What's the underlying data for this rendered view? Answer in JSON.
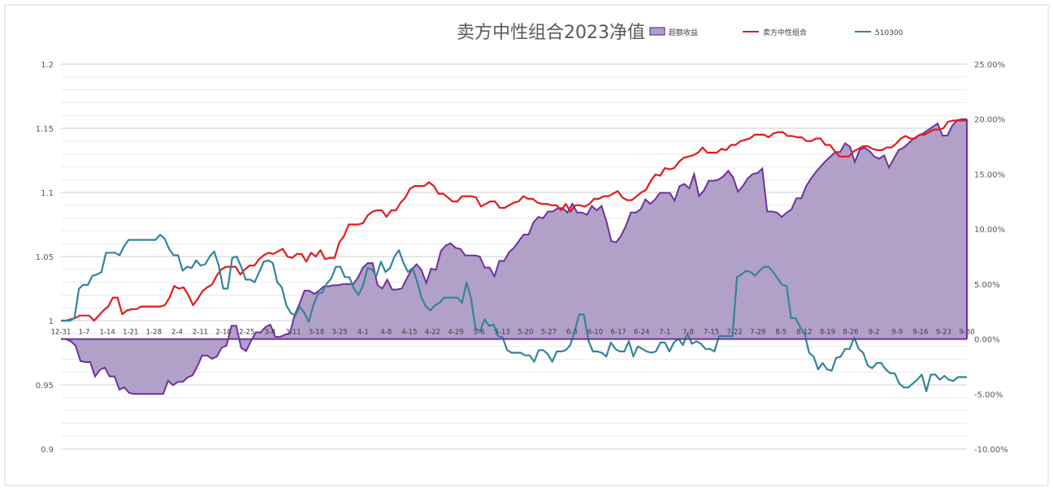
{
  "chart_data": {
    "type": "line",
    "title": "卖方中性组合2023净值",
    "legend_position": "top-right",
    "grid": true,
    "colors": {
      "excess": "#7030a0",
      "excess_fill": "#b1a0c7",
      "portfolio": "#e41a1c",
      "index": "#31859c"
    },
    "y_left": {
      "ylim": [
        0.9,
        1.2
      ],
      "ticks": [
        "1.2",
        "1.15",
        "1.1",
        "1.05",
        "1",
        "0.95",
        "0.9"
      ]
    },
    "y_right": {
      "ylim": [
        -10,
        25
      ],
      "ticks": [
        "25.00%",
        "20.00%",
        "15.00%",
        "10.00%",
        "5.00%",
        "0.00%",
        "-5.00%",
        "-10.00%"
      ]
    },
    "x_ticks": [
      "12-31",
      "1-7",
      "1-14",
      "1-21",
      "1-28",
      "2-4",
      "2-11",
      "2-18",
      "2-25",
      "3-4",
      "3-11",
      "3-18",
      "3-25",
      "4-1",
      "4-8",
      "4-15",
      "4-22",
      "4-29",
      "5-6",
      "5-13",
      "5-20",
      "5-27",
      "6-3",
      "6-10",
      "6-17",
      "6-24",
      "7-1",
      "7-8",
      "7-15",
      "7-22",
      "7-29",
      "8-5",
      "8-12",
      "8-19",
      "8-26",
      "9-2",
      "9-9",
      "9-16",
      "9-23",
      "9-30"
    ],
    "series": [
      {
        "name": "超额收益",
        "axis": "right",
        "kind": "area",
        "values": [
          0,
          0,
          -0.2,
          -0.6,
          -2.0,
          -2.1,
          -2.1,
          -3.4,
          -2.8,
          -2.6,
          -3.4,
          -3.4,
          -4.6,
          -4.4,
          -4.9,
          -5.0,
          -5.0,
          -5.0,
          -5.0,
          -5.0,
          -5.0,
          -5.0,
          -3.8,
          -4.2,
          -3.9,
          -3.9,
          -3.5,
          -3.3,
          -2.5,
          -1.5,
          -1.5,
          -1.8,
          -1.6,
          -0.8,
          -0.6,
          1.2,
          1.2,
          -0.8,
          -1.1,
          -0.2,
          0.6,
          0.6,
          1.1,
          1.3,
          0.2,
          0.2,
          0.4,
          0.5,
          2.2,
          3.2,
          4.4,
          4.4,
          4.1,
          4.4,
          4.8,
          4.8,
          4.9,
          4.9,
          5.0,
          5.0,
          5.0,
          5.6,
          6.5,
          6.9,
          6.9,
          4.9,
          4.6,
          5.4,
          4.5,
          4.5,
          4.6,
          5.5,
          6.3,
          6.8,
          6.3,
          5.1,
          6.4,
          6.3,
          8.0,
          8.5,
          8.7,
          8.3,
          8.2,
          7.6,
          7.6,
          7.6,
          7.5,
          6.5,
          6.5,
          5.7,
          7.1,
          7.1,
          7.9,
          8.3,
          8.9,
          9.5,
          9.5,
          10.6,
          11.1,
          11.0,
          11.6,
          11.6,
          11.9,
          11.9,
          11.5,
          12.3,
          11.5,
          11.5,
          11.3,
          12.1,
          11.7,
          12.1,
          10.7,
          8.9,
          8.8,
          9.4,
          10.3,
          11.5,
          11.5,
          11.8,
          12.7,
          12.3,
          12.7,
          13.3,
          13.3,
          13.3,
          12.6,
          13.9,
          14.1,
          13.7,
          15.0,
          13.0,
          13.5,
          14.4,
          14.4,
          14.5,
          14.8,
          15.3,
          14.7,
          13.4,
          13.9,
          14.6,
          15.0,
          15.1,
          15.5,
          11.6,
          11.6,
          11.5,
          11.1,
          11.5,
          11.8,
          12.8,
          12.8,
          13.9,
          14.6,
          15.2,
          15.7,
          16.2,
          16.6,
          17.0,
          17.0,
          17.8,
          17.5,
          16.1,
          17.2,
          17.4,
          17.1,
          16.6,
          16.4,
          16.7,
          15.6,
          16.4,
          17.2,
          17.4,
          17.8,
          18.2,
          18.5,
          18.7,
          19.0,
          19.3,
          19.6,
          18.5,
          18.5,
          19.4,
          19.9,
          20.0,
          20.0
        ]
      },
      {
        "name": "卖方中性组合",
        "axis": "left",
        "kind": "line",
        "values": [
          1.0,
          1.0,
          1.001,
          1.002,
          1.004,
          1.004,
          1.004,
          1.0,
          1.004,
          1.008,
          1.011,
          1.018,
          1.018,
          1.005,
          1.008,
          1.009,
          1.009,
          1.011,
          1.011,
          1.011,
          1.011,
          1.011,
          1.012,
          1.018,
          1.027,
          1.025,
          1.026,
          1.02,
          1.012,
          1.017,
          1.023,
          1.026,
          1.028,
          1.035,
          1.04,
          1.042,
          1.042,
          1.042,
          1.036,
          1.04,
          1.043,
          1.043,
          1.048,
          1.051,
          1.053,
          1.052,
          1.054,
          1.056,
          1.05,
          1.049,
          1.052,
          1.052,
          1.046,
          1.053,
          1.05,
          1.055,
          1.048,
          1.049,
          1.049,
          1.061,
          1.066,
          1.075,
          1.075,
          1.075,
          1.076,
          1.082,
          1.085,
          1.086,
          1.086,
          1.081,
          1.086,
          1.086,
          1.092,
          1.096,
          1.103,
          1.105,
          1.105,
          1.105,
          1.108,
          1.105,
          1.099,
          1.099,
          1.096,
          1.093,
          1.093,
          1.097,
          1.097,
          1.097,
          1.096,
          1.089,
          1.091,
          1.093,
          1.093,
          1.088,
          1.088,
          1.09,
          1.092,
          1.093,
          1.097,
          1.095,
          1.095,
          1.092,
          1.091,
          1.091,
          1.09,
          1.09,
          1.086,
          1.091,
          1.085,
          1.09,
          1.09,
          1.089,
          1.091,
          1.095,
          1.095,
          1.097,
          1.097,
          1.099,
          1.101,
          1.096,
          1.094,
          1.094,
          1.097,
          1.1,
          1.102,
          1.109,
          1.114,
          1.113,
          1.119,
          1.118,
          1.119,
          1.124,
          1.127,
          1.128,
          1.129,
          1.131,
          1.135,
          1.131,
          1.131,
          1.131,
          1.134,
          1.133,
          1.137,
          1.137,
          1.14,
          1.141,
          1.142,
          1.145,
          1.145,
          1.145,
          1.143,
          1.146,
          1.147,
          1.147,
          1.144,
          1.144,
          1.143,
          1.143,
          1.14,
          1.14,
          1.142,
          1.142,
          1.137,
          1.137,
          1.132,
          1.128,
          1.128,
          1.128,
          1.132,
          1.134,
          1.136,
          1.136,
          1.134,
          1.133,
          1.133,
          1.135,
          1.135,
          1.138,
          1.142,
          1.144,
          1.142,
          1.142,
          1.145,
          1.145,
          1.147,
          1.149,
          1.149,
          1.15,
          1.155,
          1.156,
          1.156,
          1.156,
          1.156
        ]
      },
      {
        "name": "510300",
        "axis": "left",
        "kind": "line",
        "values": [
          1.0,
          1.0,
          1.0,
          1.002,
          1.025,
          1.028,
          1.028,
          1.035,
          1.036,
          1.038,
          1.053,
          1.053,
          1.053,
          1.051,
          1.058,
          1.063,
          1.063,
          1.063,
          1.063,
          1.063,
          1.063,
          1.063,
          1.067,
          1.064,
          1.056,
          1.051,
          1.051,
          1.039,
          1.042,
          1.041,
          1.047,
          1.043,
          1.044,
          1.05,
          1.054,
          1.043,
          1.025,
          1.025,
          1.049,
          1.05,
          1.042,
          1.032,
          1.032,
          1.03,
          1.038,
          1.046,
          1.047,
          1.045,
          1.03,
          1.026,
          1.012,
          1.006,
          1.004,
          1.011,
          1.006,
          0.999,
          1.012,
          1.021,
          1.022,
          1.029,
          1.033,
          1.042,
          1.042,
          1.034,
          1.034,
          1.025,
          1.02,
          1.027,
          1.041,
          1.04,
          1.035,
          1.046,
          1.038,
          1.041,
          1.05,
          1.055,
          1.045,
          1.038,
          1.041,
          1.031,
          1.018,
          1.011,
          1.008,
          1.012,
          1.014,
          1.018,
          1.018,
          1.018,
          1.018,
          1.014,
          1.03,
          1.017,
          0.994,
          0.992,
          1.001,
          0.996,
          0.997,
          0.988,
          0.987,
          0.977,
          0.975,
          0.975,
          0.975,
          0.973,
          0.973,
          0.968,
          0.977,
          0.977,
          0.974,
          0.968,
          0.976,
          0.976,
          0.977,
          0.981,
          0.992,
          1.005,
          1.005,
          0.985,
          0.976,
          0.976,
          0.975,
          0.972,
          0.983,
          0.978,
          0.976,
          0.976,
          0.984,
          0.972,
          0.98,
          0.978,
          0.976,
          0.975,
          0.976,
          0.983,
          0.983,
          0.976,
          0.983,
          0.986,
          0.981,
          0.99,
          0.982,
          0.984,
          0.982,
          0.978,
          0.978,
          0.976,
          0.988,
          0.988,
          0.988,
          0.988,
          1.034,
          1.036,
          1.039,
          1.038,
          1.035,
          1.039,
          1.042,
          1.042,
          1.038,
          1.033,
          1.028,
          1.027,
          1.002,
          1.002,
          0.995,
          0.99,
          0.975,
          0.972,
          0.962,
          0.967,
          0.962,
          0.961,
          0.971,
          0.972,
          0.978,
          0.978,
          0.987,
          0.978,
          0.975,
          0.965,
          0.963,
          0.967,
          0.967,
          0.962,
          0.959,
          0.959,
          0.951,
          0.948,
          0.948,
          0.951,
          0.954,
          0.958,
          0.945,
          0.958,
          0.958,
          0.954,
          0.957,
          0.954,
          0.953,
          0.956,
          0.956,
          0.956
        ]
      }
    ]
  }
}
